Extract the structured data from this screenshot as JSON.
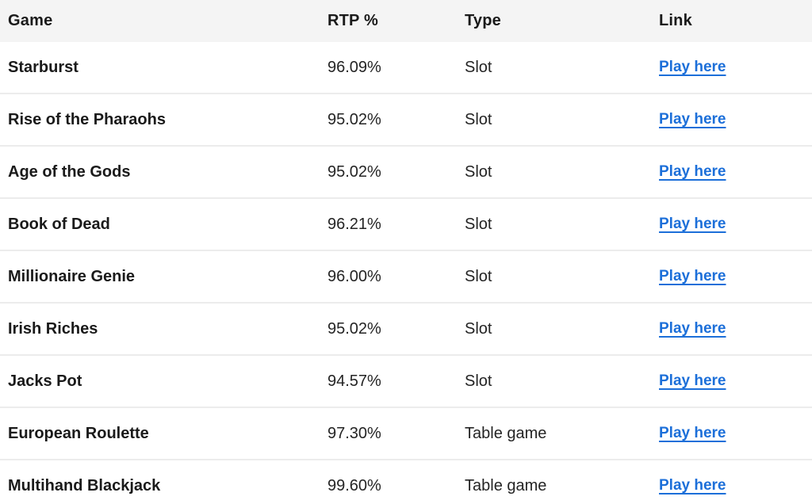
{
  "table": {
    "headers": [
      {
        "label": "Game"
      },
      {
        "label": "RTP %"
      },
      {
        "label": "Type"
      },
      {
        "label": "Link"
      }
    ],
    "rows": [
      {
        "game": "Starburst",
        "rtp": "96.09%",
        "type": "Slot",
        "link": "Play here"
      },
      {
        "game": "Rise of the Pharaohs",
        "rtp": "95.02%",
        "type": "Slot",
        "link": "Play here"
      },
      {
        "game": "Age of the Gods",
        "rtp": "95.02%",
        "type": "Slot",
        "link": "Play here"
      },
      {
        "game": "Book of Dead",
        "rtp": "96.21%",
        "type": "Slot",
        "link": "Play here"
      },
      {
        "game": "Millionaire Genie",
        "rtp": "96.00%",
        "type": "Slot",
        "link": "Play here"
      },
      {
        "game": "Irish Riches",
        "rtp": "95.02%",
        "type": "Slot",
        "link": "Play here"
      },
      {
        "game": "Jacks Pot",
        "rtp": "94.57%",
        "type": "Slot",
        "link": "Play here"
      },
      {
        "game": "European Roulette",
        "rtp": "97.30%",
        "type": "Table game",
        "link": "Play here"
      },
      {
        "game": "Multihand Blackjack",
        "rtp": "99.60%",
        "type": "Table game",
        "link": "Play here"
      }
    ]
  },
  "colors": {
    "link_blue": "#1c6fd9",
    "header_background": "#f4f4f4",
    "row_divider": "#ececec",
    "text_dark": "#1a1a1a"
  }
}
